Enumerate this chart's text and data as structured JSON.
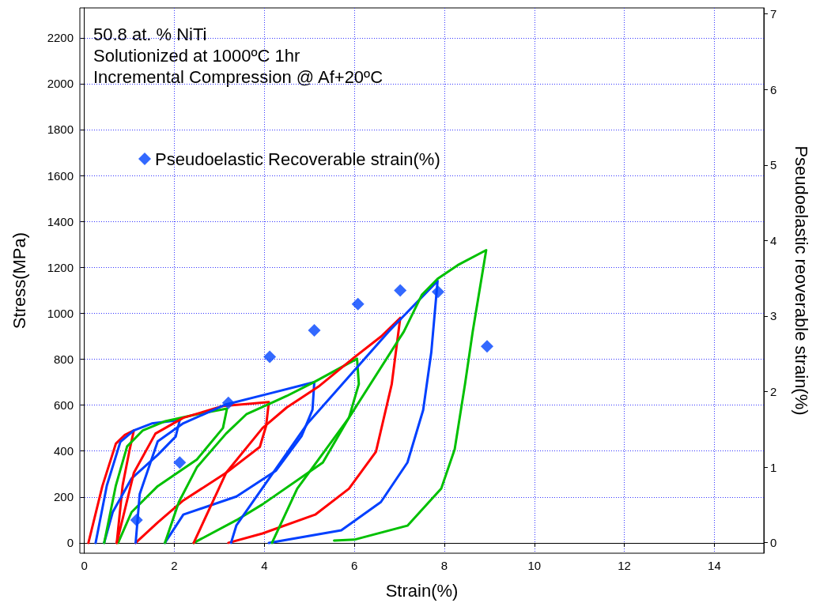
{
  "chart_data": {
    "type": "line",
    "xlabel": "Strain(%)",
    "ylabel": "Stress(MPa)",
    "y2label": "Pseudoelastic reoverable strain(%)",
    "annotations": [
      "50.8 at. % NiTi",
      "Solutionized at 1000ºC 1hr",
      "Incremental Compression @ Af+20ºC"
    ],
    "xlim": [
      -0.1,
      15.1
    ],
    "xticks": [
      0,
      2,
      4,
      6,
      8,
      10,
      12,
      14
    ],
    "ylim": [
      -45,
      2330
    ],
    "yticks": [
      0,
      200,
      400,
      600,
      800,
      1000,
      1200,
      1400,
      1600,
      1800,
      2000,
      2200
    ],
    "y2lim": [
      -0.14,
      7.08
    ],
    "y2ticks": [
      0,
      1,
      2,
      3,
      4,
      5,
      6,
      7
    ],
    "grid": true,
    "legend": "top left",
    "marker": "none",
    "series": [
      {
        "color": "#ff0000",
        "x": [
          0.09,
          0.4,
          0.7,
          0.9,
          1.1,
          1.0,
          0.85,
          0.72
        ],
        "values": [
          0,
          247,
          432,
          470,
          490,
          400,
          250,
          0
        ]
      },
      {
        "color": "#0040ff",
        "x": [
          0.25,
          0.5,
          0.8,
          1.1,
          1.5,
          2.12,
          2.03,
          1.63,
          1.05,
          0.63,
          0.44
        ],
        "values": [
          0,
          250,
          440,
          490,
          520,
          535,
          463,
          383,
          281,
          134,
          0
        ]
      },
      {
        "color": "#00c000",
        "x": [
          0.44,
          0.7,
          0.95,
          1.3,
          1.8,
          2.5,
          3.17,
          3.08,
          2.5,
          1.63,
          1.05,
          0.75
        ],
        "values": [
          0,
          250,
          420,
          490,
          530,
          560,
          585,
          500,
          363,
          247,
          134,
          0
        ]
      },
      {
        "color": "#ff0000",
        "x": [
          0.72,
          1.1,
          1.58,
          2.2,
          3.08,
          4.1,
          4.04,
          3.9,
          3.15,
          2.2,
          1.63,
          1.14
        ],
        "values": [
          0,
          305,
          476,
          545,
          596,
          613,
          510,
          418,
          305,
          185,
          89,
          0
        ]
      },
      {
        "color": "#0040ff",
        "x": [
          1.14,
          1.23,
          1.63,
          2.2,
          3.15,
          4.1,
          5.11,
          5.07,
          4.83,
          4.26,
          3.38,
          2.2,
          1.79
        ],
        "values": [
          0,
          212,
          442,
          521,
          603,
          650,
          700,
          580,
          466,
          315,
          202,
          123,
          0
        ]
      },
      {
        "color": "#00c000",
        "x": [
          1.79,
          2.1,
          2.5,
          3.15,
          3.6,
          4.5,
          5.1,
          6.06,
          6.1,
          5.88,
          5.3,
          3.96,
          3.38,
          2.43
        ],
        "values": [
          0,
          178,
          329,
          476,
          560,
          640,
          700,
          802,
          692,
          545,
          350,
          168,
          99,
          0
        ]
      },
      {
        "color": "#ff0000",
        "x": [
          2.43,
          3.15,
          3.96,
          4.5,
          5.2,
          6.0,
          6.6,
          7.02,
          6.83,
          6.48,
          5.88,
          5.13,
          3.96,
          3.2
        ],
        "values": [
          0,
          305,
          500,
          590,
          680,
          808,
          900,
          980,
          690,
          397,
          236,
          123,
          41,
          0
        ]
      },
      {
        "color": "#0040ff",
        "x": [
          3.26,
          3.38,
          4.96,
          6.76,
          7.85,
          7.71,
          7.53,
          7.18,
          6.59,
          5.71,
          4.1
        ],
        "values": [
          0,
          77,
          520,
          920,
          1141,
          830,
          579,
          350,
          178,
          55,
          0
        ]
      },
      {
        "color": "#00c000",
        "x": [
          4.17,
          4.73,
          5.88,
          7.1,
          7.5,
          7.85,
          8.3,
          8.93,
          8.63,
          8.46,
          8.23,
          7.93,
          7.18,
          6.0,
          5.55
        ],
        "values": [
          0,
          236,
          545,
          920,
          1080,
          1150,
          1210,
          1275,
          920,
          692,
          408,
          236,
          75,
          14,
          10
        ]
      },
      {
        "type": "scatter",
        "axis": "y2",
        "marker": "diamond",
        "name": "Pseudoelastic Recoverable strain(%)",
        "color": "#0044ff",
        "x": [
          1.16,
          2.12,
          3.2,
          4.12,
          5.11,
          6.08,
          7.02,
          7.86,
          8.95
        ],
        "values": [
          0.3,
          1.06,
          1.85,
          2.46,
          2.81,
          3.16,
          3.34,
          3.32,
          2.6
        ]
      }
    ]
  }
}
